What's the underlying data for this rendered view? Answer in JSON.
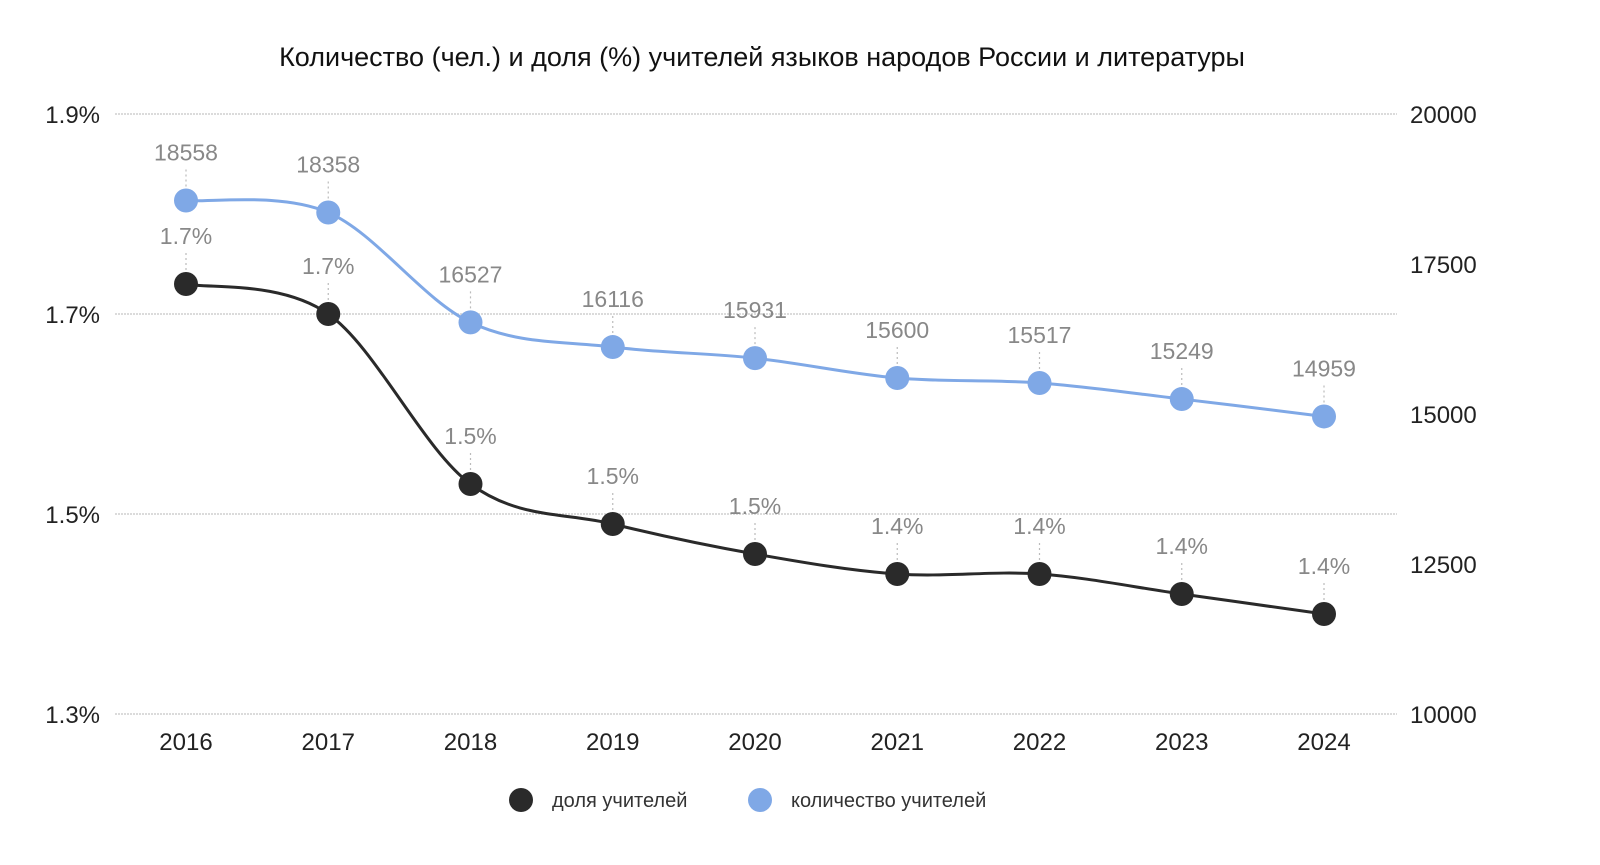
{
  "chart_data": {
    "type": "line",
    "title": "Количество (чел.) и доля (%) учителей языков народов России и литературы",
    "categories": [
      "2016",
      "2017",
      "2018",
      "2019",
      "2020",
      "2021",
      "2022",
      "2023",
      "2024"
    ],
    "y_left": {
      "ticks": [
        "1.9%",
        "1.7%",
        "1.5%",
        "1.3%"
      ],
      "ylim": [
        1.3,
        1.9
      ],
      "unit": "%"
    },
    "y_right": {
      "ticks": [
        "20000",
        "17500",
        "15000",
        "12500",
        "10000"
      ],
      "ylim": [
        10000,
        20000
      ]
    },
    "grid": true,
    "legend_position": "bottom",
    "series": [
      {
        "name": "доля учителей",
        "axis": "left",
        "color": "#2a2a2a",
        "values": [
          1.73,
          1.7,
          1.53,
          1.49,
          1.46,
          1.44,
          1.44,
          1.42,
          1.4
        ],
        "labels": [
          "1.7%",
          "1.7%",
          "1.5%",
          "1.5%",
          "1.5%",
          "1.4%",
          "1.4%",
          "1.4%",
          "1.4%"
        ]
      },
      {
        "name": "количество учителей",
        "axis": "right",
        "color": "#7fa8e6",
        "values": [
          18558,
          18358,
          16527,
          16116,
          15931,
          15600,
          15517,
          15249,
          14959
        ],
        "labels": [
          "18558",
          "18358",
          "16527",
          "16116",
          "15931",
          "15600",
          "15517",
          "15249",
          "14959"
        ]
      }
    ]
  }
}
